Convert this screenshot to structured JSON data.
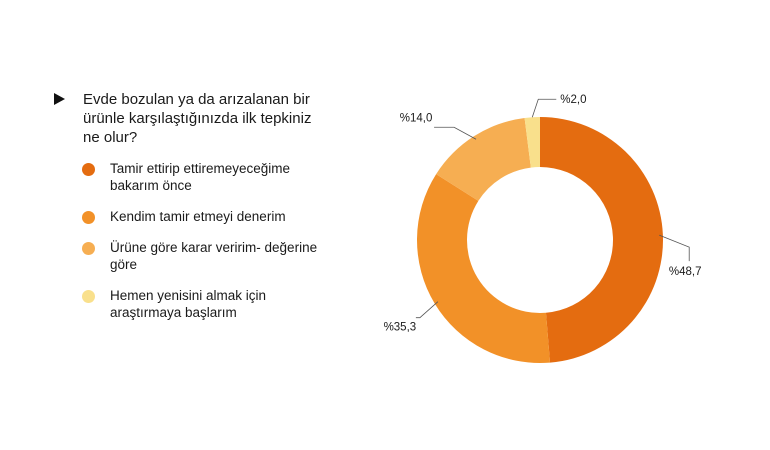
{
  "question": "Evde bozulan ya da arızalanan bir ürünle karşılaştığınızda ilk tepkiniz ne olur?",
  "chart_data": {
    "type": "pie",
    "donut": true,
    "legend_position": "left",
    "categories": [
      "Tamir ettirip ettiremeyeceğime bakarım önce",
      "Kendim tamir etmeyi denerim",
      "Ürüne göre karar veririm- değerine göre",
      "Hemen yenisini almak için araştırmaya başlarım"
    ],
    "values": [
      48.7,
      35.3,
      14.0,
      2.0
    ],
    "labels": [
      "%48,7",
      "%35,3",
      "%14,0",
      "%2,0"
    ],
    "colors": [
      "#E46C10",
      "#F29128",
      "#F6AE52",
      "#F9E08C"
    ]
  }
}
